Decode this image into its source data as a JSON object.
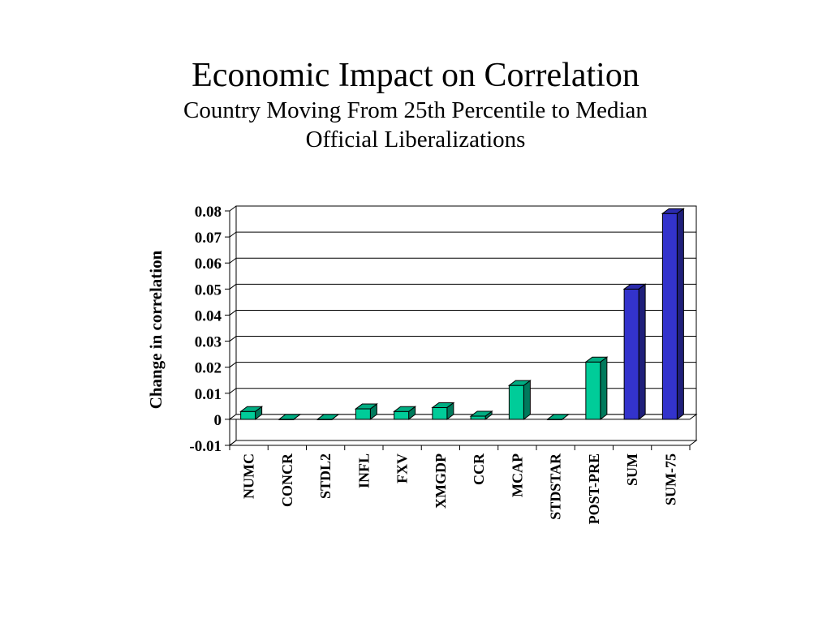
{
  "slide": {
    "title": "Economic Impact on Correlation",
    "subtitle_line1": "Country Moving From 25th Percentile to Median",
    "subtitle_line2": "Official Liberalizations"
  },
  "chart_data": {
    "type": "bar",
    "ylabel": "Change in correlation",
    "xlabel": "",
    "ylim": [
      -0.01,
      0.08
    ],
    "yticks": [
      "0.08",
      "0.07",
      "0.06",
      "0.05",
      "0.04",
      "0.03",
      "0.02",
      "0.01",
      "0",
      "-0.01"
    ],
    "ytick_values": [
      0.08,
      0.07,
      0.06,
      0.05,
      0.04,
      0.03,
      0.02,
      0.01,
      0,
      -0.01
    ],
    "grid": true,
    "categories": [
      "NUMC",
      "CONCR",
      "STDL2",
      "INFL",
      "FXV",
      "XMGDP",
      "CCR",
      "MCAP",
      "STDSTAR",
      "POST-PRE",
      "SUM",
      "SUM-75"
    ],
    "values": [
      0.003,
      0.0,
      0.0,
      0.004,
      0.003,
      0.0045,
      0.0012,
      0.013,
      0.0,
      0.022,
      0.05,
      0.079
    ],
    "colors": [
      "#00cc99",
      "#00cc99",
      "#00cc99",
      "#00cc99",
      "#00cc99",
      "#00cc99",
      "#00cc99",
      "#00cc99",
      "#00cc99",
      "#00cc99",
      "#3333cc",
      "#3333cc"
    ]
  }
}
